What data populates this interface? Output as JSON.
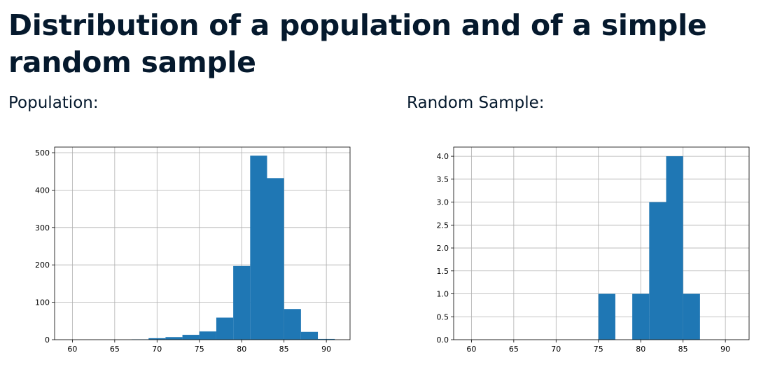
{
  "page": {
    "title": "Distribution of a population and of a simple random sample",
    "left_label": "Population:",
    "right_label": "Random Sample:"
  },
  "colors": {
    "bar": "#1f77b4",
    "grid": "#b0b0b0",
    "title": "#05192d"
  },
  "chart_data": [
    {
      "type": "bar",
      "subtype": "histogram",
      "title": "",
      "xlabel": "",
      "ylabel": "",
      "grid": true,
      "xlim": [
        57.9,
        92.8
      ],
      "ylim": [
        0,
        515
      ],
      "x_ticks": [
        60,
        65,
        70,
        75,
        80,
        85,
        90
      ],
      "x_tick_labels": [
        "60",
        "65",
        "70",
        "75",
        "80",
        "85",
        "90"
      ],
      "y_ticks": [
        0,
        100,
        200,
        300,
        400,
        500
      ],
      "y_tick_labels": [
        "0",
        "100",
        "200",
        "300",
        "400",
        "500"
      ],
      "bins": [
        {
          "start": 67,
          "end": 69,
          "value": 1
        },
        {
          "start": 69,
          "end": 71,
          "value": 4
        },
        {
          "start": 71,
          "end": 73,
          "value": 7
        },
        {
          "start": 73,
          "end": 75,
          "value": 13
        },
        {
          "start": 75,
          "end": 77,
          "value": 22
        },
        {
          "start": 77,
          "end": 79,
          "value": 59
        },
        {
          "start": 79,
          "end": 81,
          "value": 197
        },
        {
          "start": 81,
          "end": 83,
          "value": 492
        },
        {
          "start": 83,
          "end": 85,
          "value": 432
        },
        {
          "start": 85,
          "end": 87,
          "value": 82
        },
        {
          "start": 87,
          "end": 89,
          "value": 21
        },
        {
          "start": 89,
          "end": 91,
          "value": 2
        }
      ]
    },
    {
      "type": "bar",
      "subtype": "histogram",
      "title": "",
      "xlabel": "",
      "ylabel": "",
      "grid": true,
      "xlim": [
        57.9,
        92.8
      ],
      "ylim": [
        0,
        4.2
      ],
      "x_ticks": [
        60,
        65,
        70,
        75,
        80,
        85,
        90
      ],
      "x_tick_labels": [
        "60",
        "65",
        "70",
        "75",
        "80",
        "85",
        "90"
      ],
      "y_ticks": [
        0,
        0.5,
        1,
        1.5,
        2,
        2.5,
        3,
        3.5,
        4
      ],
      "y_tick_labels": [
        "0.0",
        "0.5",
        "1.0",
        "1.5",
        "2.0",
        "2.5",
        "3.0",
        "3.5",
        "4.0"
      ],
      "bins": [
        {
          "start": 75,
          "end": 77,
          "value": 1
        },
        {
          "start": 77,
          "end": 79,
          "value": 0
        },
        {
          "start": 79,
          "end": 81,
          "value": 1
        },
        {
          "start": 81,
          "end": 83,
          "value": 3
        },
        {
          "start": 83,
          "end": 85,
          "value": 4
        },
        {
          "start": 85,
          "end": 87,
          "value": 1
        }
      ]
    }
  ]
}
